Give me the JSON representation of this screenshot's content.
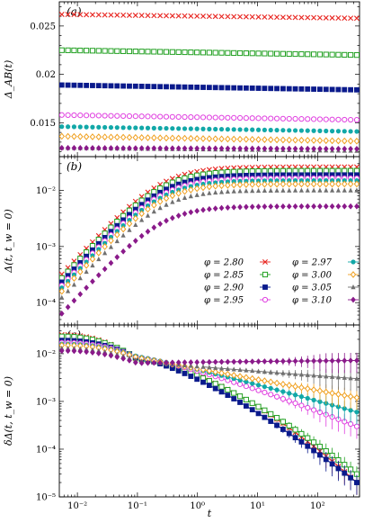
{
  "chart_data": [
    {
      "type": "scatter",
      "panel_label": "(a)",
      "xscale": "log",
      "yscale": "linear",
      "xlim": [
        0.005,
        500
      ],
      "ylim": [
        0.0115,
        0.0275
      ],
      "ylabel": "Δ_AB(t)",
      "yticks": [
        0.015,
        0.02,
        0.025
      ],
      "ytick_labels": [
        "0.015",
        "0.02",
        "0.025"
      ],
      "series": [
        {
          "phi": "2.80",
          "y_start": 0.0262,
          "y_end": 0.0258
        },
        {
          "phi": "2.85",
          "y_start": 0.0225,
          "y_end": 0.022
        },
        {
          "phi": "2.90",
          "y_start": 0.0189,
          "y_end": 0.0184
        },
        {
          "phi": "2.95",
          "y_start": 0.0158,
          "y_end": 0.0153
        },
        {
          "phi": "2.97",
          "y_start": 0.0146,
          "y_end": 0.0141
        },
        {
          "phi": "3.00",
          "y_start": 0.0136,
          "y_end": 0.0131
        },
        {
          "phi": "3.05",
          "y_start": 0.0124,
          "y_end": 0.0121
        },
        {
          "phi": "3.10",
          "y_start": 0.0124,
          "y_end": 0.0123
        }
      ]
    },
    {
      "type": "scatter",
      "panel_label": "(b)",
      "xscale": "log",
      "yscale": "log",
      "xlim": [
        0.005,
        500
      ],
      "ylim": [
        4e-05,
        0.04
      ],
      "ylabel": "Δ(t, t_w = 0)",
      "yticks": [
        0.0001,
        0.001,
        0.01
      ],
      "ytick_labels": [
        "10⁻⁴",
        "10⁻³",
        "10⁻²"
      ],
      "series": [
        {
          "phi": "2.80",
          "plateau": 0.0262
        },
        {
          "phi": "2.85",
          "plateau": 0.0224
        },
        {
          "phi": "2.90",
          "plateau": 0.0189
        },
        {
          "phi": "2.95",
          "plateau": 0.0165
        },
        {
          "phi": "2.97",
          "plateau": 0.015
        },
        {
          "phi": "3.00",
          "plateau": 0.013
        },
        {
          "phi": "3.05",
          "plateau": 0.01
        },
        {
          "phi": "3.10",
          "plateau": 0.0052
        }
      ]
    },
    {
      "type": "scatter",
      "panel_label": "(c)",
      "xscale": "log",
      "yscale": "log",
      "xlim": [
        0.005,
        500
      ],
      "ylim": [
        1e-05,
        0.04
      ],
      "xlabel": "t",
      "ylabel": "δΔ(t, t_w = 0)",
      "yticks": [
        1e-05,
        0.0001,
        0.001,
        0.01
      ],
      "ytick_labels": [
        "10⁻⁵",
        "10⁻⁴",
        "10⁻³",
        "10⁻²"
      ],
      "xticks": [
        0.01,
        0.1,
        1,
        10,
        100
      ],
      "xtick_labels": [
        "10⁻²",
        "10⁻¹",
        "10⁰",
        "10¹",
        "10²"
      ],
      "series": [
        {
          "phi": "2.80",
          "y_start": 0.025,
          "y_end": 2e-05
        },
        {
          "phi": "2.85",
          "y_start": 0.023,
          "y_end": 3e-05
        },
        {
          "phi": "2.90",
          "y_start": 0.019,
          "y_end": 2e-05
        },
        {
          "phi": "2.95",
          "y_start": 0.017,
          "y_end": 0.0003
        },
        {
          "phi": "2.97",
          "y_start": 0.016,
          "y_end": 0.0006
        },
        {
          "phi": "3.00",
          "y_start": 0.015,
          "y_end": 0.0012
        },
        {
          "phi": "3.05",
          "y_start": 0.013,
          "y_end": 0.003
        },
        {
          "phi": "3.10",
          "y_start": 0.0115,
          "y_end": 0.0072
        }
      ]
    }
  ],
  "legend": {
    "placement": "lower-right of panel (b)",
    "entries": [
      {
        "label": "φ = 2.80",
        "color": "#e8241f",
        "marker": "x"
      },
      {
        "label": "φ = 2.85",
        "color": "#22a022",
        "marker": "square-open"
      },
      {
        "label": "φ = 2.90",
        "color": "#0a1a8c",
        "marker": "square"
      },
      {
        "label": "φ = 2.95",
        "color": "#e040e0",
        "marker": "circle-open"
      },
      {
        "label": "φ = 2.97",
        "color": "#12a8a8",
        "marker": "circle"
      },
      {
        "label": "φ = 3.00",
        "color": "#f0a020",
        "marker": "diamond-open"
      },
      {
        "label": "φ = 3.05",
        "color": "#707070",
        "marker": "triangle"
      },
      {
        "label": "φ = 3.10",
        "color": "#8a1a8a",
        "marker": "diamond"
      }
    ]
  }
}
